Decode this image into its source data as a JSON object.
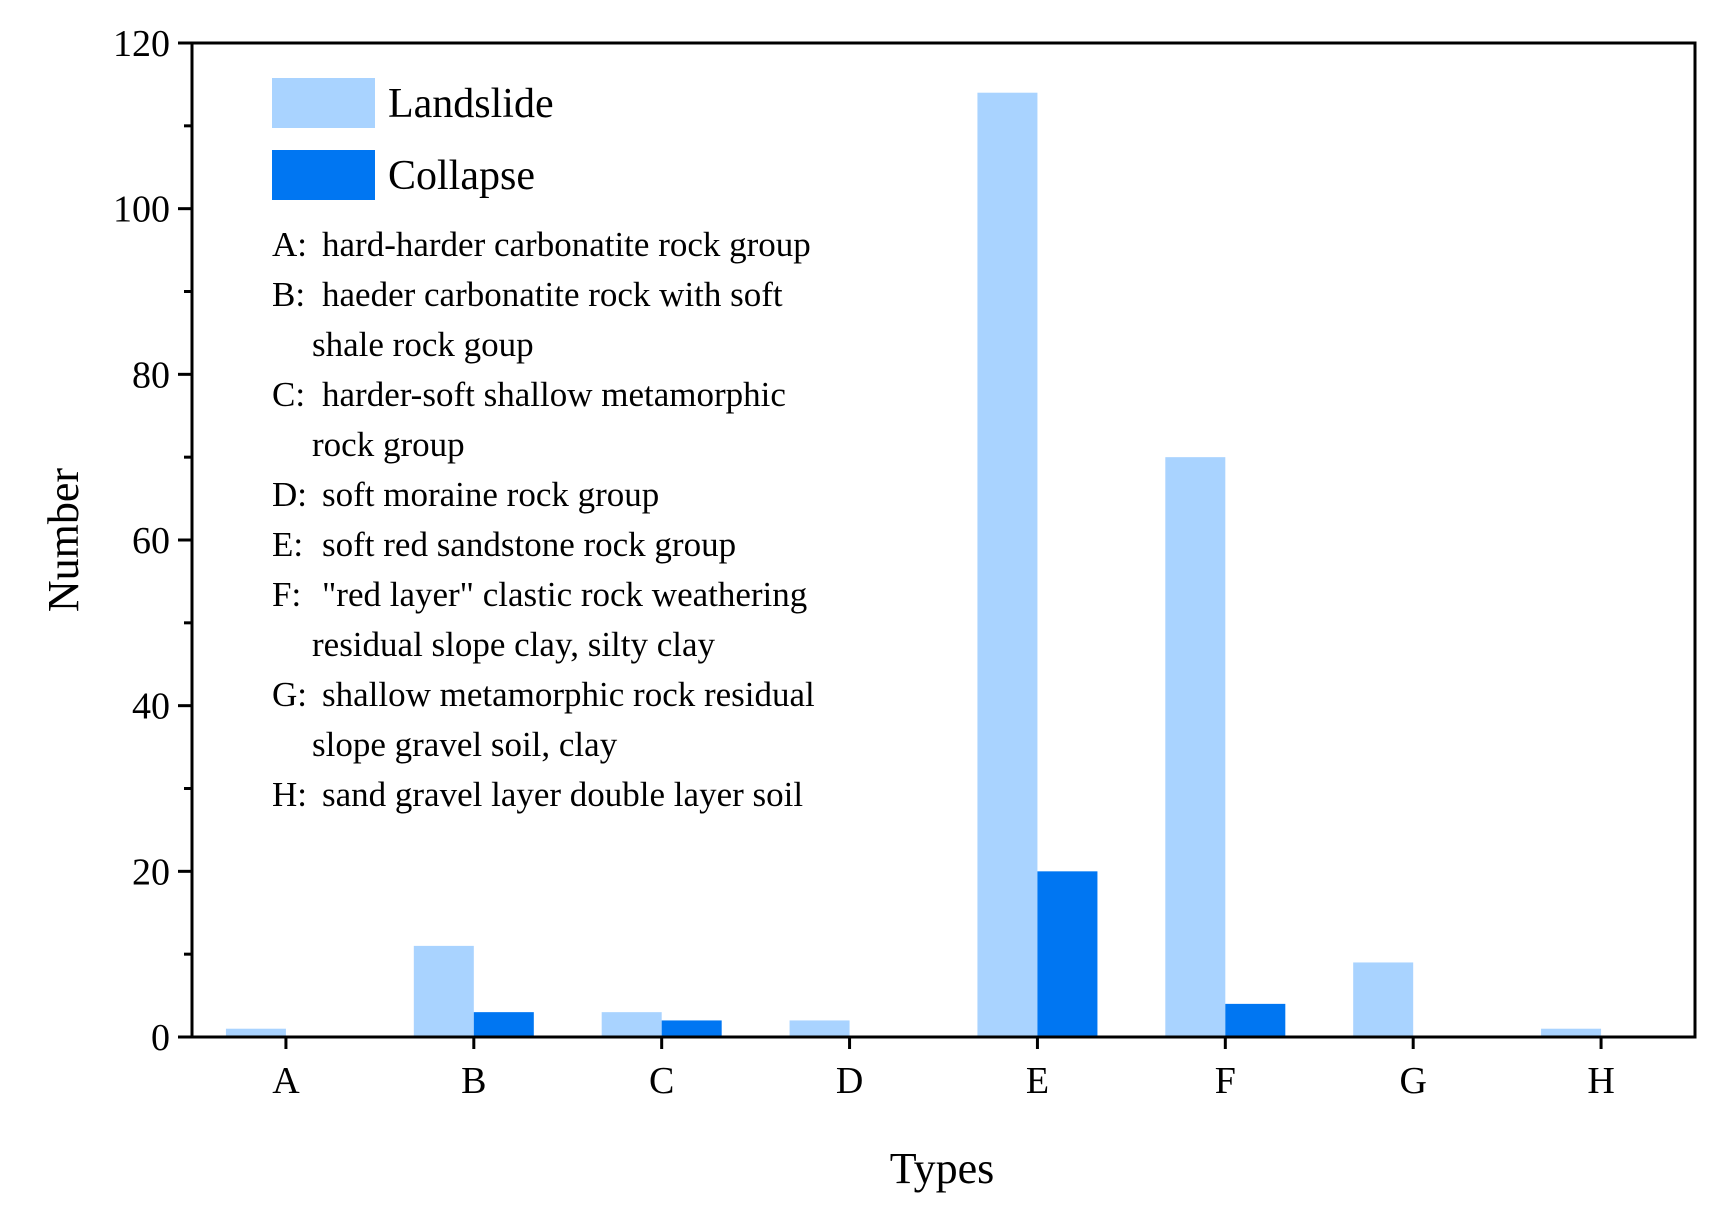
{
  "chart_data": {
    "type": "bar",
    "title": "",
    "xlabel": "Types",
    "ylabel": "Number",
    "categories": [
      "A",
      "B",
      "C",
      "D",
      "E",
      "F",
      "G",
      "H"
    ],
    "series": [
      {
        "name": "Landslide",
        "values": [
          1,
          11,
          3,
          2,
          114,
          70,
          9,
          1
        ],
        "color": "#a9d3ff"
      },
      {
        "name": "Collapse",
        "values": [
          0,
          3,
          2,
          0,
          20,
          4,
          0,
          0
        ],
        "color": "#0076f2"
      }
    ],
    "ylim": [
      0,
      120
    ],
    "yticks": [
      "0",
      "20",
      "40",
      "60",
      "80",
      "100",
      "120"
    ],
    "legend_position": "top-left",
    "grid": false,
    "notes": [
      {
        "label": "A:",
        "lines": [
          "hard-harder carbonatite rock group"
        ]
      },
      {
        "label": "B:",
        "lines": [
          "haeder carbonatite rock with soft",
          "shale rock goup"
        ]
      },
      {
        "label": "C:",
        "lines": [
          "harder-soft shallow metamorphic",
          "rock group"
        ]
      },
      {
        "label": "D:",
        "lines": [
          "soft moraine rock group"
        ]
      },
      {
        "label": "E:",
        "lines": [
          "soft red sandstone rock group"
        ]
      },
      {
        "label": "F:",
        "lines": [
          "\"red layer\" clastic rock weathering",
          "residual slope clay, silty clay"
        ]
      },
      {
        "label": "G:",
        "lines": [
          "shallow metamorphic rock residual",
          "slope gravel soil, clay"
        ]
      },
      {
        "label": "H:",
        "lines": [
          "sand gravel layer double layer soil"
        ]
      }
    ]
  }
}
